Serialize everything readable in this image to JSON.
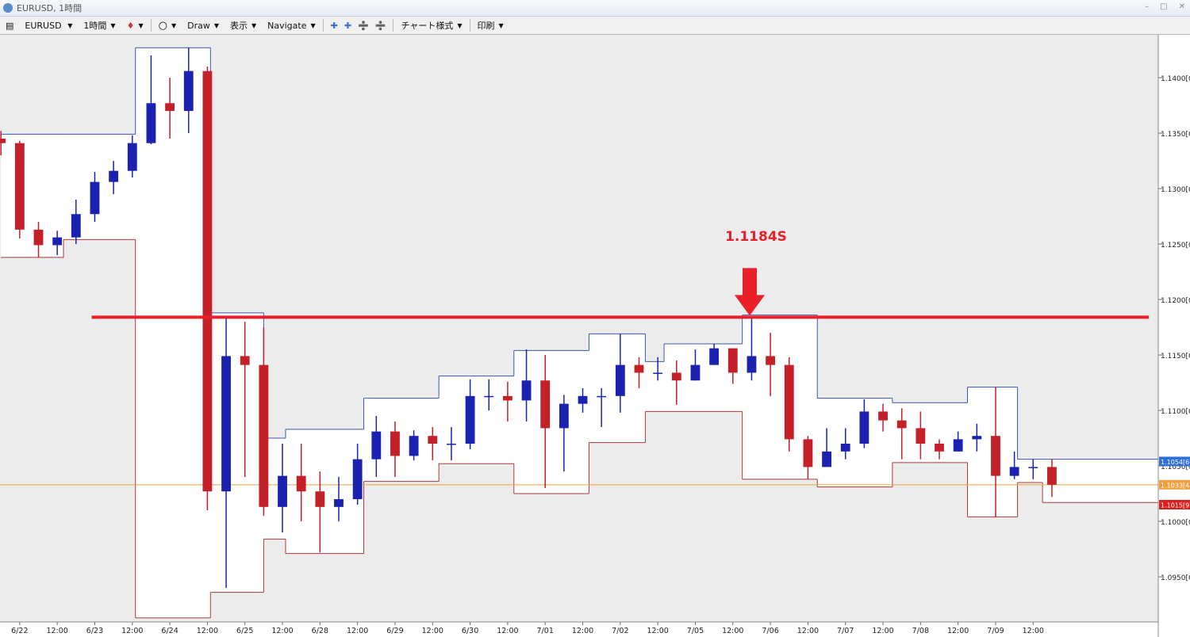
{
  "window": {
    "title": "EURUSD, 1時間",
    "toolbar": [
      "EURUSD",
      "1時間",
      "Draw",
      "表示",
      "Navigate",
      "チャート様式",
      "印刷"
    ]
  },
  "chart_data": {
    "type": "candlestick",
    "x": [
      -6,
      0,
      6,
      12,
      18,
      24,
      30,
      36,
      42,
      48,
      54,
      60,
      66,
      72,
      78,
      84,
      90,
      96,
      102,
      108,
      114,
      120,
      126,
      132,
      138,
      144,
      150,
      156,
      162,
      168,
      174,
      180,
      186,
      192,
      198,
      204,
      210,
      216,
      222,
      228,
      234,
      240,
      246,
      252,
      258,
      264,
      270,
      276,
      282,
      288,
      294,
      300,
      306,
      312,
      318,
      324,
      330
    ],
    "open": [
      1.1345,
      1.1341,
      1.1263,
      1.1249,
      1.1256,
      1.1277,
      1.1306,
      1.1316,
      1.1341,
      1.1377,
      1.137,
      1.1406,
      1.1027,
      1.1149,
      1.1141,
      1.1013,
      1.1041,
      1.1027,
      1.1013,
      1.102,
      1.1056,
      1.1081,
      1.1059,
      1.1077,
      1.107,
      1.107,
      1.1113,
      1.1113,
      1.1109,
      1.1127,
      1.1084,
      1.1106,
      1.1113,
      1.1113,
      1.1141,
      1.1134,
      1.1134,
      1.1127,
      1.1141,
      1.1156,
      1.1134,
      1.1149,
      1.1141,
      1.1074,
      1.1049,
      1.1063,
      1.107,
      1.1099,
      1.1091,
      1.1084,
      1.107,
      1.1063,
      1.1074,
      1.1077,
      1.1041,
      1.1049,
      1.1049
    ],
    "high": [
      1.1352,
      1.1343,
      1.127,
      1.1262,
      1.129,
      1.1315,
      1.1325,
      1.1348,
      1.142,
      1.14,
      1.1427,
      1.141,
      1.1185,
      1.118,
      1.1175,
      1.107,
      1.107,
      1.1045,
      1.104,
      1.107,
      1.1095,
      1.109,
      1.1082,
      1.1085,
      1.1085,
      1.1128,
      1.1128,
      1.1126,
      1.1155,
      1.115,
      1.1114,
      1.112,
      1.112,
      1.1169,
      1.1148,
      1.1148,
      1.1145,
      1.1155,
      1.116,
      1.1156,
      1.1184,
      1.117,
      1.1148,
      1.1077,
      1.1084,
      1.1084,
      1.111,
      1.1106,
      1.1102,
      1.1099,
      1.1074,
      1.1081,
      1.1088,
      1.1121,
      1.1063,
      1.1056,
      1.1056
    ],
    "low": [
      1.133,
      1.1255,
      1.1238,
      1.124,
      1.125,
      1.127,
      1.1295,
      1.131,
      1.134,
      1.1345,
      1.135,
      1.101,
      1.094,
      1.104,
      1.1005,
      1.099,
      1.1,
      1.0972,
      1.1,
      1.1015,
      1.104,
      1.104,
      1.1055,
      1.1055,
      1.1055,
      1.1065,
      1.11,
      1.109,
      1.109,
      1.103,
      1.1045,
      1.1098,
      1.1085,
      1.1098,
      1.112,
      1.1127,
      1.1105,
      1.1127,
      1.1141,
      1.1124,
      1.1127,
      1.1113,
      1.1063,
      1.1038,
      1.1049,
      1.1056,
      1.1066,
      1.1081,
      1.1056,
      1.1056,
      1.1056,
      1.1063,
      1.1063,
      1.1004,
      1.1038,
      1.1038,
      1.1022
    ],
    "close": [
      1.1341,
      1.1263,
      1.1249,
      1.1256,
      1.1277,
      1.1306,
      1.1316,
      1.1341,
      1.1377,
      1.137,
      1.1406,
      1.1027,
      1.1149,
      1.1141,
      1.1013,
      1.1041,
      1.1027,
      1.1013,
      1.102,
      1.1056,
      1.1081,
      1.1059,
      1.1077,
      1.107,
      1.107,
      1.1113,
      1.1113,
      1.1109,
      1.1127,
      1.1084,
      1.1106,
      1.1113,
      1.1113,
      1.1141,
      1.1134,
      1.1134,
      1.1127,
      1.1141,
      1.1156,
      1.1134,
      1.1149,
      1.1141,
      1.1074,
      1.1049,
      1.1063,
      1.107,
      1.1099,
      1.1091,
      1.1084,
      1.107,
      1.1063,
      1.1074,
      1.1077,
      1.1041,
      1.1049,
      1.1049,
      1.1033
    ],
    "up_color": "#1c22b0",
    "down_color": "#c4202a",
    "xlim": [
      -6.3,
      364
    ],
    "ylim": [
      1.09093,
      1.14386
    ],
    "xticks": [
      {
        "value": 0,
        "label": "6/22"
      },
      {
        "value": 12,
        "label": "12:00"
      },
      {
        "value": 24,
        "label": "6/23"
      },
      {
        "value": 36,
        "label": "12:00"
      },
      {
        "value": 48,
        "label": "6/24"
      },
      {
        "value": 60,
        "label": "12:00"
      },
      {
        "value": 72,
        "label": "6/25"
      },
      {
        "value": 84,
        "label": "12:00"
      },
      {
        "value": 96,
        "label": "6/28"
      },
      {
        "value": 108,
        "label": "12:00"
      },
      {
        "value": 120,
        "label": "6/29"
      },
      {
        "value": 132,
        "label": "12:00"
      },
      {
        "value": 144,
        "label": "6/30"
      },
      {
        "value": 156,
        "label": "12:00"
      },
      {
        "value": 168,
        "label": "7/01"
      },
      {
        "value": 180,
        "label": "12:00"
      },
      {
        "value": 192,
        "label": "7/02"
      },
      {
        "value": 204,
        "label": "12:00"
      },
      {
        "value": 216,
        "label": "7/05"
      },
      {
        "value": 228,
        "label": "12:00"
      },
      {
        "value": 240,
        "label": "7/06"
      },
      {
        "value": 252,
        "label": "12:00"
      },
      {
        "value": 264,
        "label": "7/07"
      },
      {
        "value": 276,
        "label": "12:00"
      },
      {
        "value": 288,
        "label": "7/08"
      },
      {
        "value": 300,
        "label": "12:00"
      },
      {
        "value": 312,
        "label": "7/09"
      },
      {
        "value": 324,
        "label": "12:00"
      }
    ],
    "yticks": [
      {
        "value": 1.095,
        "label": "1.0950[0]"
      },
      {
        "value": 1.1,
        "label": "1.1000[0]"
      },
      {
        "value": 1.105,
        "label": "1.1050[0]"
      },
      {
        "value": 1.11,
        "label": "1.1100[0]"
      },
      {
        "value": 1.115,
        "label": "1.1150[0]"
      },
      {
        "value": 1.12,
        "label": "1.1200[0]"
      },
      {
        "value": 1.125,
        "label": "1.1250[0]"
      },
      {
        "value": 1.13,
        "label": "1.1300[0]"
      },
      {
        "value": 1.135,
        "label": "1.1350[0]"
      },
      {
        "value": 1.14,
        "label": "1.1400[0]"
      }
    ],
    "range_high": {
      "color": "#3a55b0",
      "edges": [
        -6,
        37,
        61,
        78,
        85,
        110,
        134,
        158,
        182,
        200,
        206,
        231,
        255,
        279,
        303,
        319,
        364
      ],
      "values": [
        1.1349,
        1.1427,
        1.1188,
        1.1075,
        1.1083,
        1.1111,
        1.1131,
        1.1154,
        1.1169,
        1.1144,
        1.116,
        1.1186,
        1.1111,
        1.1107,
        1.1121,
        1.1056
      ]
    },
    "range_low": {
      "color": "#a83a3a",
      "edges": [
        -6,
        14,
        37,
        61,
        78,
        85,
        110,
        134,
        158,
        182,
        200,
        231,
        255,
        279,
        303,
        319,
        327,
        364
      ],
      "values": [
        1.1238,
        1.1254,
        1.0913,
        1.0936,
        1.0984,
        1.0971,
        1.1036,
        1.1052,
        1.1025,
        1.1071,
        1.1099,
        1.1038,
        1.1031,
        1.1053,
        1.1004,
        1.1035,
        1.1017
      ]
    },
    "hline": {
      "value": 1.1184,
      "x": [
        23,
        361
      ],
      "color": "#e8202a"
    },
    "annotations": [
      {
        "text": "1.1184S",
        "color": "#e8202a"
      }
    ],
    "price_tags": [
      {
        "value": 1.1054,
        "label": "1.1054[6]",
        "color": "#2f6fd8"
      },
      {
        "value": 1.1033,
        "label": "1.1033[4]",
        "color": "#f0a040"
      },
      {
        "value": 1.1015,
        "label": "1.1015[9]",
        "color": "#d82020"
      }
    ]
  }
}
